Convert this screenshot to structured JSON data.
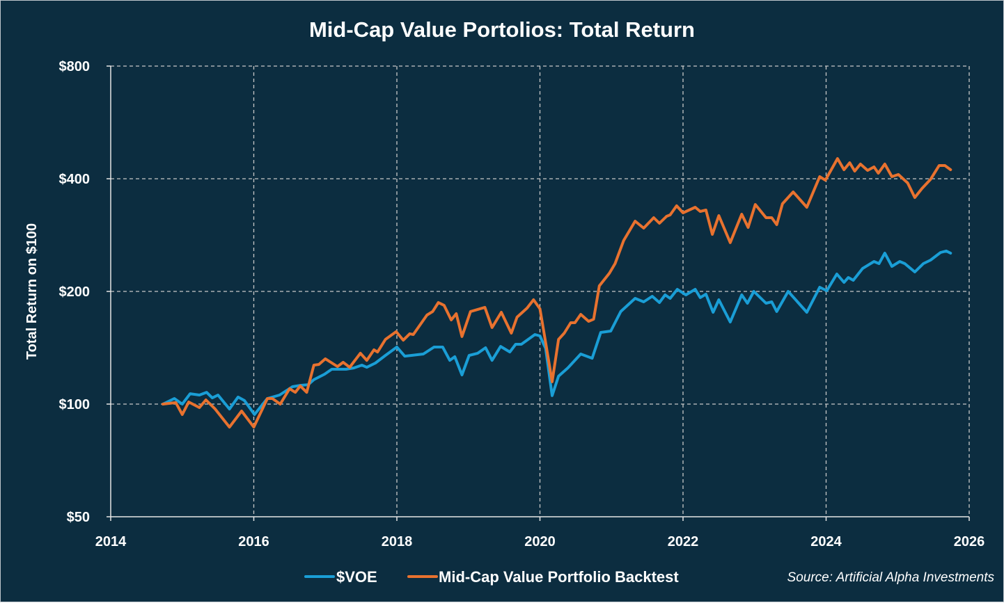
{
  "chart_data": {
    "type": "line",
    "title": "Mid-Cap Value Portolios: Total Return",
    "xlabel": "",
    "ylabel": "Total Return on $100",
    "yscale": "log",
    "xlim": [
      2014,
      2026
    ],
    "ylim": [
      50,
      800
    ],
    "x_ticks": [
      2014,
      2016,
      2018,
      2020,
      2022,
      2024,
      2026
    ],
    "x_tick_labels": [
      "2014",
      "2016",
      "2018",
      "2020",
      "2022",
      "2024",
      "2026"
    ],
    "y_ticks": [
      50,
      100,
      200,
      400,
      800
    ],
    "y_tick_labels": [
      "$50",
      "$100",
      "$200",
      "$400",
      "$800"
    ],
    "grid": true,
    "legend_position": "bottom",
    "source": "Source: Artificial Alpha Investments",
    "series": [
      {
        "name": "$VOE",
        "color": "#1a9ed6",
        "points": [
          [
            2014.73,
            100
          ],
          [
            2014.89,
            103.5
          ],
          [
            2015.0,
            100
          ],
          [
            2015.11,
            106.6
          ],
          [
            2015.24,
            105.7
          ],
          [
            2015.34,
            107.5
          ],
          [
            2015.42,
            103.9
          ],
          [
            2015.5,
            105.7
          ],
          [
            2015.66,
            97.0
          ],
          [
            2015.78,
            104.4
          ],
          [
            2015.87,
            102.2
          ],
          [
            2016.01,
            93.8
          ],
          [
            2016.19,
            103.5
          ],
          [
            2016.36,
            105.7
          ],
          [
            2016.54,
            111.3
          ],
          [
            2016.65,
            112.2
          ],
          [
            2016.76,
            112.7
          ],
          [
            2016.84,
            116.2
          ],
          [
            2016.99,
            120.2
          ],
          [
            2017.09,
            123.9
          ],
          [
            2017.29,
            123.9
          ],
          [
            2017.4,
            124.9
          ],
          [
            2017.51,
            127.1
          ],
          [
            2017.58,
            125.4
          ],
          [
            2017.7,
            128.7
          ],
          [
            2017.84,
            134.9
          ],
          [
            2018.0,
            142.0
          ],
          [
            2018.11,
            134.3
          ],
          [
            2018.37,
            136.1
          ],
          [
            2018.52,
            142.0
          ],
          [
            2018.64,
            142.0
          ],
          [
            2018.74,
            130.9
          ],
          [
            2018.81,
            133.8
          ],
          [
            2018.91,
            119.7
          ],
          [
            2019.01,
            134.9
          ],
          [
            2019.13,
            136.7
          ],
          [
            2019.24,
            141.4
          ],
          [
            2019.33,
            130.9
          ],
          [
            2019.45,
            142.6
          ],
          [
            2019.58,
            137.8
          ],
          [
            2019.66,
            144.5
          ],
          [
            2019.74,
            144.5
          ],
          [
            2019.93,
            153.4
          ],
          [
            2020.0,
            152.1
          ],
          [
            2020.08,
            140.8
          ],
          [
            2020.17,
            105.3
          ],
          [
            2020.26,
            118.7
          ],
          [
            2020.39,
            124.9
          ],
          [
            2020.57,
            136.1
          ],
          [
            2020.73,
            132.6
          ],
          [
            2020.85,
            155.4
          ],
          [
            2020.99,
            156.7
          ],
          [
            2021.13,
            176.7
          ],
          [
            2021.33,
            191.6
          ],
          [
            2021.45,
            187.6
          ],
          [
            2021.57,
            194.1
          ],
          [
            2021.67,
            186.8
          ],
          [
            2021.75,
            195.8
          ],
          [
            2021.82,
            191.6
          ],
          [
            2021.92,
            202.6
          ],
          [
            2022.04,
            195.8
          ],
          [
            2022.17,
            202.6
          ],
          [
            2022.24,
            192.5
          ],
          [
            2022.32,
            196.6
          ],
          [
            2022.42,
            175.9
          ],
          [
            2022.5,
            190.0
          ],
          [
            2022.66,
            165.7
          ],
          [
            2022.82,
            195.8
          ],
          [
            2022.9,
            186.0
          ],
          [
            2022.99,
            200.0
          ],
          [
            2023.16,
            186.0
          ],
          [
            2023.24,
            187.6
          ],
          [
            2023.31,
            176.7
          ],
          [
            2023.47,
            200.0
          ],
          [
            2023.73,
            175.9
          ],
          [
            2023.91,
            205.2
          ],
          [
            2024.01,
            200.9
          ],
          [
            2024.15,
            222.6
          ],
          [
            2024.25,
            211.4
          ],
          [
            2024.31,
            217.9
          ],
          [
            2024.38,
            214.2
          ],
          [
            2024.51,
            230.3
          ],
          [
            2024.67,
            240.4
          ],
          [
            2024.74,
            237.3
          ],
          [
            2024.82,
            253.1
          ],
          [
            2024.92,
            233.3
          ],
          [
            2025.03,
            240.4
          ],
          [
            2025.1,
            237.3
          ],
          [
            2025.24,
            225.5
          ],
          [
            2025.36,
            237.3
          ],
          [
            2025.46,
            242.5
          ],
          [
            2025.6,
            254.2
          ],
          [
            2025.68,
            256.4
          ],
          [
            2025.74,
            253.1
          ]
        ]
      },
      {
        "name": "Mid-Cap Value Portfolio Backtest",
        "color": "#e8722f",
        "points": [
          [
            2014.73,
            100
          ],
          [
            2014.91,
            100.9
          ],
          [
            2015.0,
            93.8
          ],
          [
            2015.09,
            101.3
          ],
          [
            2015.24,
            97.9
          ],
          [
            2015.33,
            102.6
          ],
          [
            2015.46,
            97.0
          ],
          [
            2015.66,
            86.8
          ],
          [
            2015.83,
            95.8
          ],
          [
            2016.0,
            86.8
          ],
          [
            2016.19,
            103.5
          ],
          [
            2016.26,
            103.5
          ],
          [
            2016.37,
            100
          ],
          [
            2016.5,
            109.9
          ],
          [
            2016.58,
            107.5
          ],
          [
            2016.65,
            111.8
          ],
          [
            2016.74,
            107.5
          ],
          [
            2016.84,
            127.1
          ],
          [
            2016.91,
            127.6
          ],
          [
            2017.0,
            132.1
          ],
          [
            2017.17,
            126.0
          ],
          [
            2017.25,
            129.3
          ],
          [
            2017.34,
            125.4
          ],
          [
            2017.49,
            136.7
          ],
          [
            2017.58,
            130.9
          ],
          [
            2017.68,
            139.6
          ],
          [
            2017.73,
            137.8
          ],
          [
            2017.84,
            148.9
          ],
          [
            2017.99,
            156.1
          ],
          [
            2018.09,
            148.2
          ],
          [
            2018.18,
            154.1
          ],
          [
            2018.23,
            153.4
          ],
          [
            2018.42,
            172.9
          ],
          [
            2018.5,
            176.7
          ],
          [
            2018.58,
            186.8
          ],
          [
            2018.66,
            183.6
          ],
          [
            2018.76,
            167.8
          ],
          [
            2018.83,
            174.4
          ],
          [
            2018.91,
            151.5
          ],
          [
            2019.03,
            176.7
          ],
          [
            2019.23,
            181.3
          ],
          [
            2019.33,
            160.1
          ],
          [
            2019.46,
            175.9
          ],
          [
            2019.6,
            154.7
          ],
          [
            2019.68,
            170.7
          ],
          [
            2019.82,
            180.5
          ],
          [
            2019.91,
            190.0
          ],
          [
            2020.0,
            179.7
          ],
          [
            2020.05,
            158.1
          ],
          [
            2020.17,
            114.7
          ],
          [
            2020.26,
            148.9
          ],
          [
            2020.34,
            154.7
          ],
          [
            2020.43,
            165.0
          ],
          [
            2020.49,
            165.0
          ],
          [
            2020.57,
            173.7
          ],
          [
            2020.68,
            166.4
          ],
          [
            2020.75,
            168.6
          ],
          [
            2020.83,
            207.0
          ],
          [
            2020.97,
            223.6
          ],
          [
            2021.05,
            237.3
          ],
          [
            2021.17,
            273.4
          ],
          [
            2021.33,
            308.1
          ],
          [
            2021.45,
            295.2
          ],
          [
            2021.59,
            314.8
          ],
          [
            2021.67,
            304.2
          ],
          [
            2021.77,
            317.5
          ],
          [
            2021.82,
            320.2
          ],
          [
            2021.91,
            338.6
          ],
          [
            2022.0,
            324.4
          ],
          [
            2022.17,
            335.7
          ],
          [
            2022.24,
            327.2
          ],
          [
            2022.32,
            330.0
          ],
          [
            2022.41,
            284.1
          ],
          [
            2022.5,
            318.9
          ],
          [
            2022.66,
            269.9
          ],
          [
            2022.82,
            321.6
          ],
          [
            2022.91,
            296.5
          ],
          [
            2023.01,
            341.5
          ],
          [
            2023.16,
            314.8
          ],
          [
            2023.24,
            314.8
          ],
          [
            2023.31,
            301.6
          ],
          [
            2023.39,
            342.9
          ],
          [
            2023.54,
            368.8
          ],
          [
            2023.73,
            335.7
          ],
          [
            2023.91,
            405.2
          ],
          [
            2023.99,
            396.6
          ],
          [
            2024.16,
            452.9
          ],
          [
            2024.25,
            422.9
          ],
          [
            2024.33,
            441.4
          ],
          [
            2024.4,
            419.3
          ],
          [
            2024.48,
            437.7
          ],
          [
            2024.58,
            421.1
          ],
          [
            2024.67,
            430.2
          ],
          [
            2024.73,
            414.0
          ],
          [
            2024.82,
            437.7
          ],
          [
            2024.92,
            405.2
          ],
          [
            2025.01,
            410.5
          ],
          [
            2025.14,
            389.9
          ],
          [
            2025.24,
            356.4
          ],
          [
            2025.34,
            376.8
          ],
          [
            2025.46,
            398.4
          ],
          [
            2025.58,
            433.9
          ],
          [
            2025.66,
            433.9
          ],
          [
            2025.74,
            422.9
          ]
        ]
      }
    ]
  }
}
